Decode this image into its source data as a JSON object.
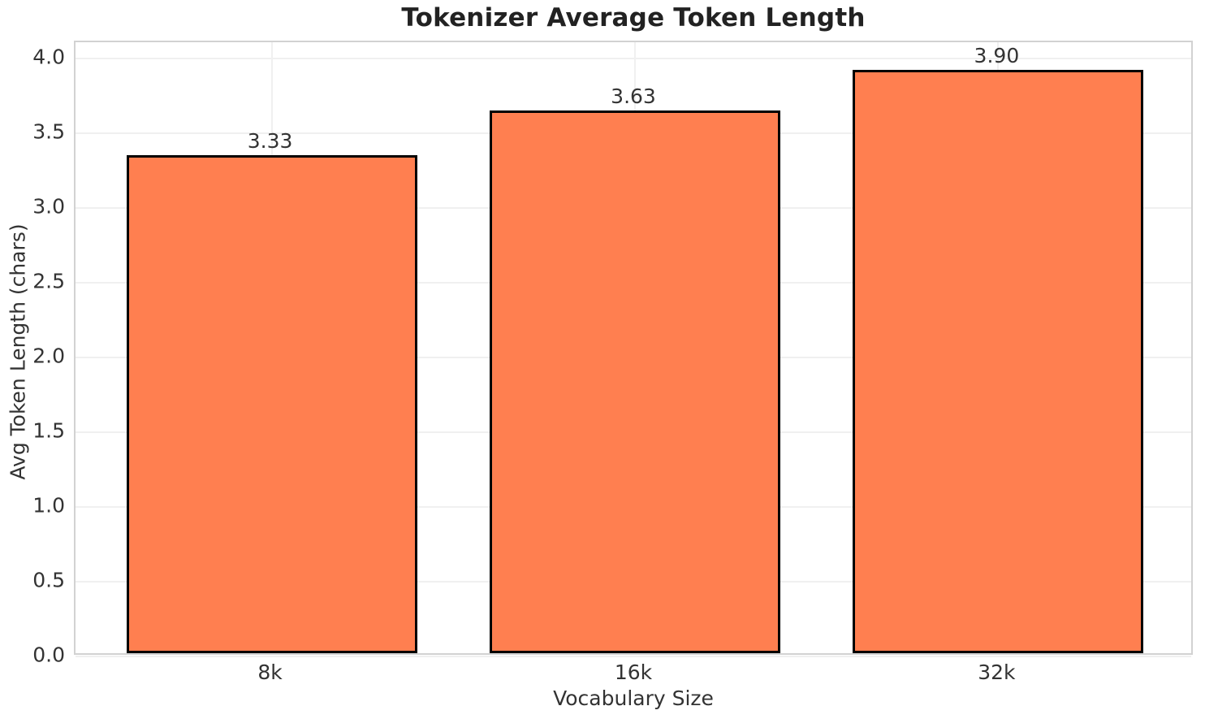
{
  "title": "Tokenizer Average Token Length",
  "chart_data": {
    "type": "bar",
    "title": "Tokenizer Average Token Length",
    "xlabel": "Vocabulary Size",
    "ylabel": "Avg Token Length (chars)",
    "categories": [
      "8k",
      "16k",
      "32k"
    ],
    "values": [
      3.33,
      3.63,
      3.9
    ],
    "value_labels": [
      "3.33",
      "3.63",
      "3.90"
    ],
    "yticks": [
      0.0,
      0.5,
      1.0,
      1.5,
      2.0,
      2.5,
      3.0,
      3.5,
      4.0
    ],
    "ytick_labels": [
      "0.0",
      "0.5",
      "1.0",
      "1.5",
      "2.0",
      "2.5",
      "3.0",
      "3.5",
      "4.0"
    ],
    "ylim": [
      0,
      4.11
    ],
    "grid": true,
    "legend": null,
    "colors": {
      "bar_fill": "#FF7F50",
      "bar_edge": "#000000",
      "grid": "#f0f0f0",
      "spine": "#d2d2d2",
      "title_text": "#222222",
      "text": "#333333",
      "background": "#ffffff"
    }
  }
}
